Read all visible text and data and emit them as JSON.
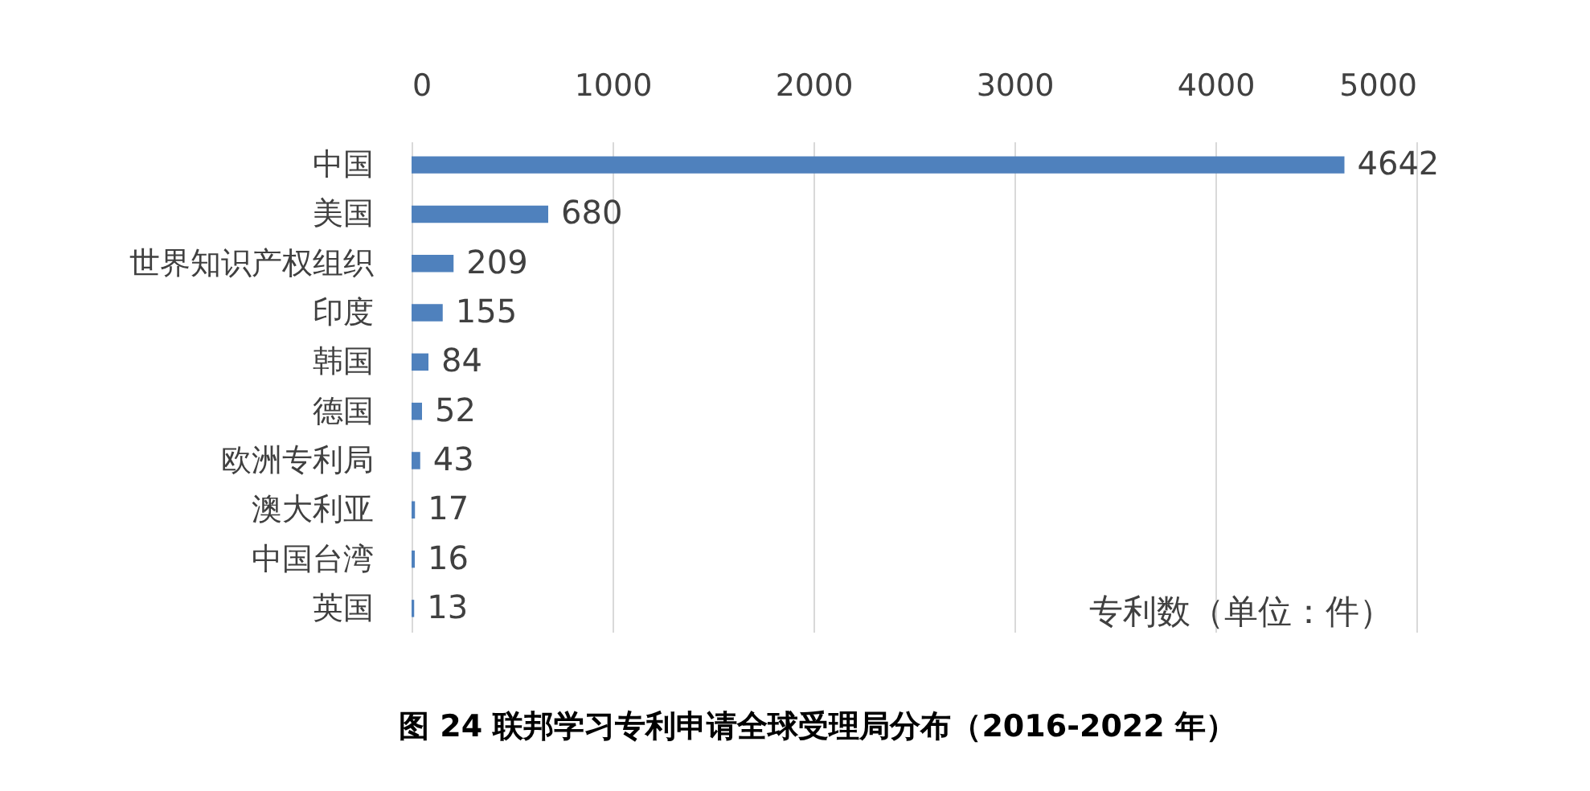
{
  "chart_data": {
    "type": "bar",
    "orientation": "horizontal",
    "title": "图 24 联邦学习专利申请全球受理局分布（2016-2022 年）",
    "xlabel": "专利数（单位：件）",
    "categories": [
      "中国",
      "美国",
      "世界知识产权组织",
      "印度",
      "韩国",
      "德国",
      "欧洲专利局",
      "澳大利亚",
      "中国台湾",
      "英国"
    ],
    "values": [
      4642,
      680,
      209,
      155,
      84,
      52,
      43,
      17,
      16,
      13
    ],
    "color": "#4f81bd",
    "xlim": [
      0,
      5000
    ],
    "xticks": [
      0,
      1000,
      2000,
      3000,
      4000,
      5000
    ],
    "grid": "x",
    "data_labels": true
  }
}
